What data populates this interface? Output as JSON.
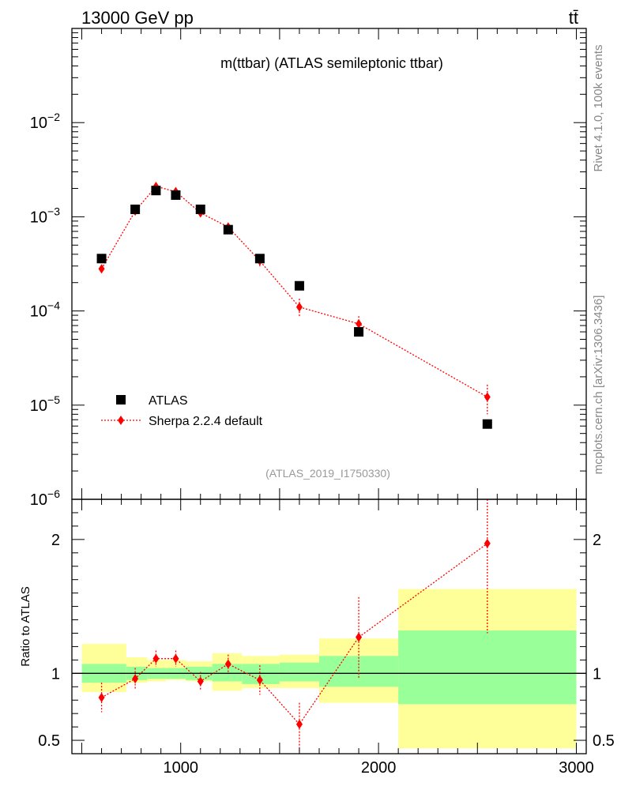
{
  "header": {
    "left": "13000 GeV pp",
    "right": "tt̄"
  },
  "side_labels": {
    "rivet": "Rivet 4.1.0,  100k events",
    "mcplots": "mcplots.cern.ch [arXiv:1306.3436]"
  },
  "colors": {
    "data": "#000000",
    "mc": "#ff0000",
    "band_inner": "#99ff99",
    "band_outer": "#ffff99",
    "analysis_label": "#999999"
  },
  "chart_data": [
    {
      "type": "scatter",
      "title": "m(ttbar) (ATLAS semileptonic ttbar)",
      "analysis_id": "(ATLAS_2019_I1750330)",
      "yscale": "log",
      "xlim": [
        450,
        3050
      ],
      "ylim": [
        1e-06,
        0.1
      ],
      "y_tick_labels": [
        "10^-2",
        "10^-3",
        "10^-4",
        "10^-5",
        "10^-6"
      ],
      "legend_position": "bottom-left",
      "series": [
        {
          "name": "ATLAS",
          "marker": "square",
          "x": [
            600,
            770,
            875,
            975,
            1100,
            1240,
            1400,
            1600,
            1900,
            2550
          ],
          "y": [
            0.00036,
            0.0012,
            0.0019,
            0.0017,
            0.0012,
            0.00073,
            0.00036,
            0.000185,
            6e-05,
            6.3e-06
          ]
        },
        {
          "name": "Sherpa 2.2.4 default",
          "marker": "diamond",
          "line": "dotted",
          "x": [
            600,
            770,
            875,
            975,
            1100,
            1240,
            1400,
            1600,
            1900,
            2550
          ],
          "y": [
            0.00028,
            0.00115,
            0.0021,
            0.00185,
            0.0011,
            0.00078,
            0.00034,
            0.00011,
            7.3e-05,
            1.22e-05
          ],
          "y_low": [
            0.00025,
            0.00105,
            0.00197,
            0.00172,
            0.00101,
            0.0007,
            0.00029,
            8.5e-05,
            5.8e-05,
            8e-06
          ],
          "y_high": [
            0.00031,
            0.00125,
            0.00223,
            0.00198,
            0.00119,
            0.00086,
            0.00039,
            0.000135,
            8.8e-05,
            1.65e-05
          ]
        }
      ]
    },
    {
      "type": "scatter",
      "ylabel": "Ratio to ATLAS",
      "ylim": [
        0.4,
        2.3
      ],
      "xlim": [
        450,
        3050
      ],
      "x_ticks": [
        1000,
        2000,
        3000
      ],
      "x_tick_labels": [
        "1000",
        "2000",
        "3000"
      ],
      "y_ticks": [
        0.5,
        1,
        2
      ],
      "y_tick_labels": [
        "0.5",
        "1",
        "2"
      ],
      "reference_line": 1,
      "bins": [
        {
          "lo": 500,
          "hi": 725,
          "inner": [
            0.93,
            1.07
          ],
          "outer": [
            0.86,
            1.22
          ]
        },
        {
          "lo": 725,
          "hi": 830,
          "inner": [
            0.95,
            1.05
          ],
          "outer": [
            0.93,
            1.12
          ]
        },
        {
          "lo": 830,
          "hi": 925,
          "inner": [
            0.96,
            1.04
          ],
          "outer": [
            0.94,
            1.1
          ]
        },
        {
          "lo": 925,
          "hi": 1025,
          "inner": [
            0.96,
            1.04
          ],
          "outer": [
            0.95,
            1.1
          ]
        },
        {
          "lo": 1025,
          "hi": 1160,
          "inner": [
            0.95,
            1.05
          ],
          "outer": [
            0.94,
            1.09
          ]
        },
        {
          "lo": 1160,
          "hi": 1310,
          "inner": [
            0.94,
            1.07
          ],
          "outer": [
            0.87,
            1.15
          ]
        },
        {
          "lo": 1310,
          "hi": 1500,
          "inner": [
            0.92,
            1.07
          ],
          "outer": [
            0.89,
            1.13
          ]
        },
        {
          "lo": 1500,
          "hi": 1700,
          "inner": [
            0.94,
            1.08
          ],
          "outer": [
            0.89,
            1.14
          ]
        },
        {
          "lo": 1700,
          "hi": 2100,
          "inner": [
            0.9,
            1.13
          ],
          "outer": [
            0.78,
            1.26
          ]
        },
        {
          "lo": 2100,
          "hi": 3000,
          "inner": [
            0.77,
            1.32
          ],
          "outer": [
            0.44,
            1.63
          ]
        }
      ],
      "series": [
        {
          "name": "Sherpa 2.2.4 default / ATLAS",
          "marker": "diamond",
          "line": "dotted",
          "x": [
            600,
            770,
            875,
            975,
            1100,
            1240,
            1400,
            1600,
            1900,
            2550
          ],
          "y": [
            0.82,
            0.96,
            1.11,
            1.11,
            0.94,
            1.07,
            0.95,
            0.62,
            1.27,
            1.97
          ],
          "y_low": [
            0.71,
            0.88,
            1.05,
            1.05,
            0.87,
            1.0,
            0.84,
            0.42,
            0.96,
            1.3
          ],
          "y_high": [
            0.93,
            1.04,
            1.17,
            1.17,
            1.01,
            1.14,
            1.06,
            0.78,
            1.57,
            2.3
          ]
        }
      ]
    }
  ]
}
